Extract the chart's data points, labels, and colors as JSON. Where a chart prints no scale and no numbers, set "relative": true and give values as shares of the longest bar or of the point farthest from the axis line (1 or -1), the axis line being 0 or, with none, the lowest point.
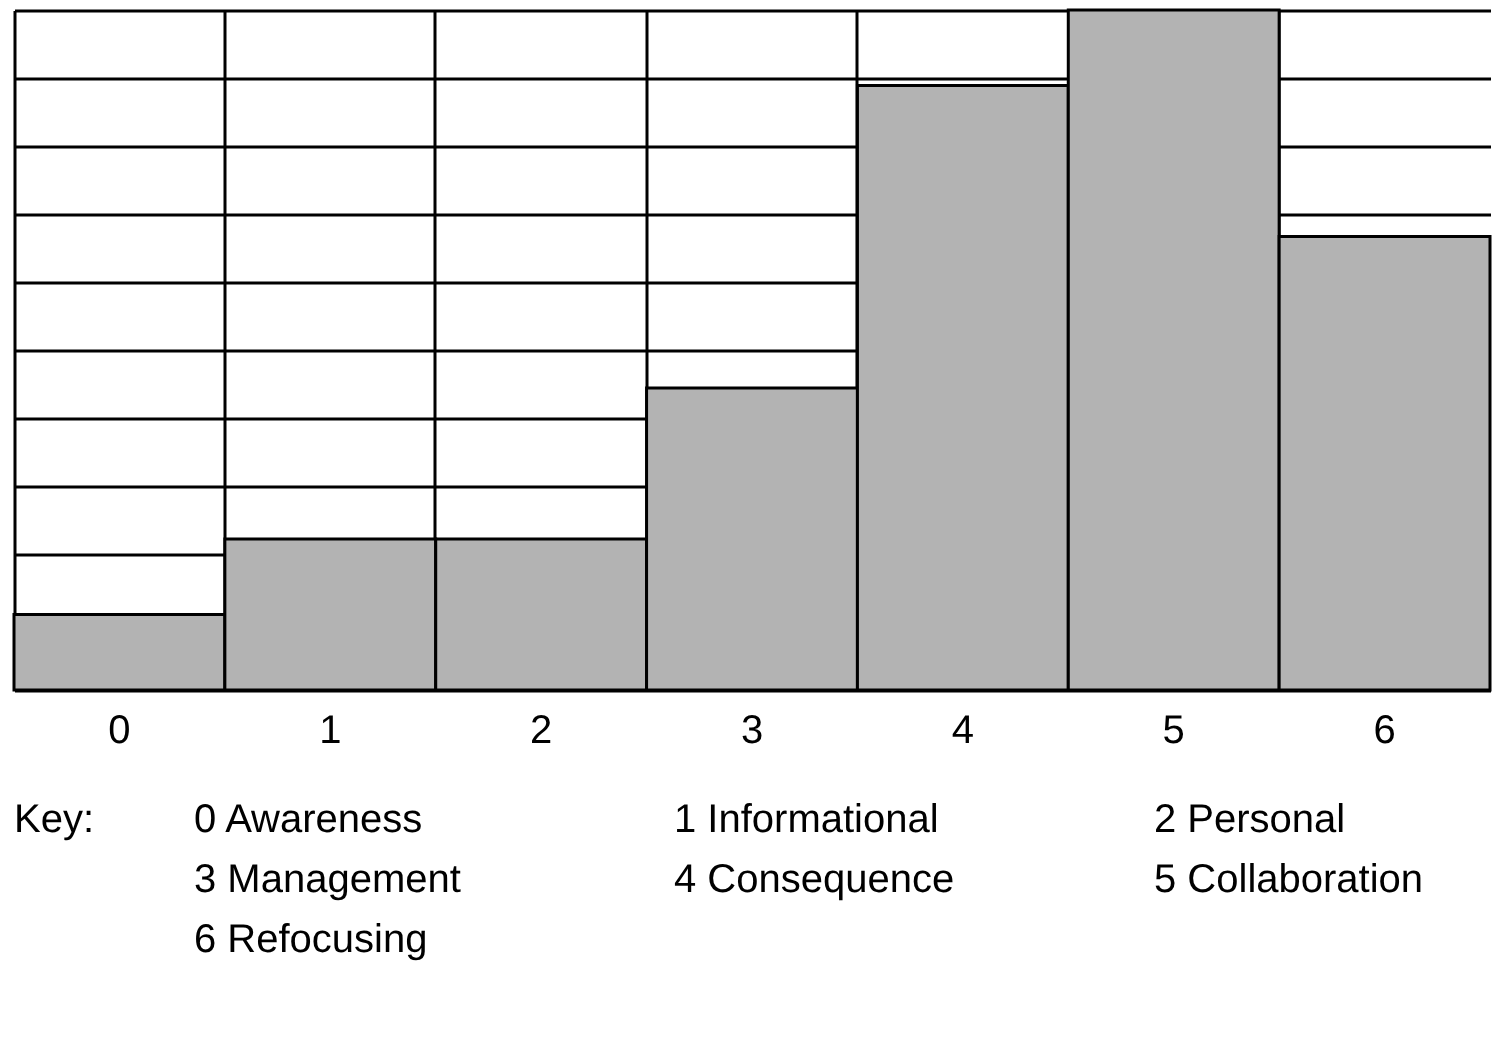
{
  "chart_data": {
    "type": "bar",
    "relative": true,
    "categories": [
      "0",
      "1",
      "2",
      "3",
      "4",
      "5",
      "6"
    ],
    "values": [
      0.111,
      0.222,
      0.222,
      0.444,
      0.889,
      1,
      0.667
    ],
    "color": "#b3b3b3",
    "grid": true,
    "annotations": [
      "Key:",
      "0 Awareness",
      "1 Informational",
      "2 Personal",
      "3 Management",
      "4 Consequence",
      "5 Collaboration",
      "6 Refocusing"
    ]
  }
}
